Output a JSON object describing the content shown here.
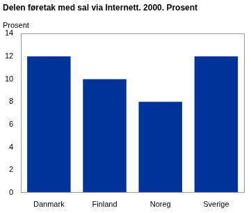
{
  "chart_data": {
    "type": "bar",
    "title": "Delen føretak med sal via Internett. 2000. Prosent",
    "ylabel": "Prosent",
    "categories": [
      "Danmark",
      "Finland",
      "Noreg",
      "Sverige"
    ],
    "values": [
      12,
      10,
      8,
      12
    ],
    "color": "#003399",
    "ylim": [
      0,
      14
    ],
    "yticks": [
      0,
      2,
      4,
      6,
      8,
      10,
      12,
      14
    ],
    "grid": false
  }
}
